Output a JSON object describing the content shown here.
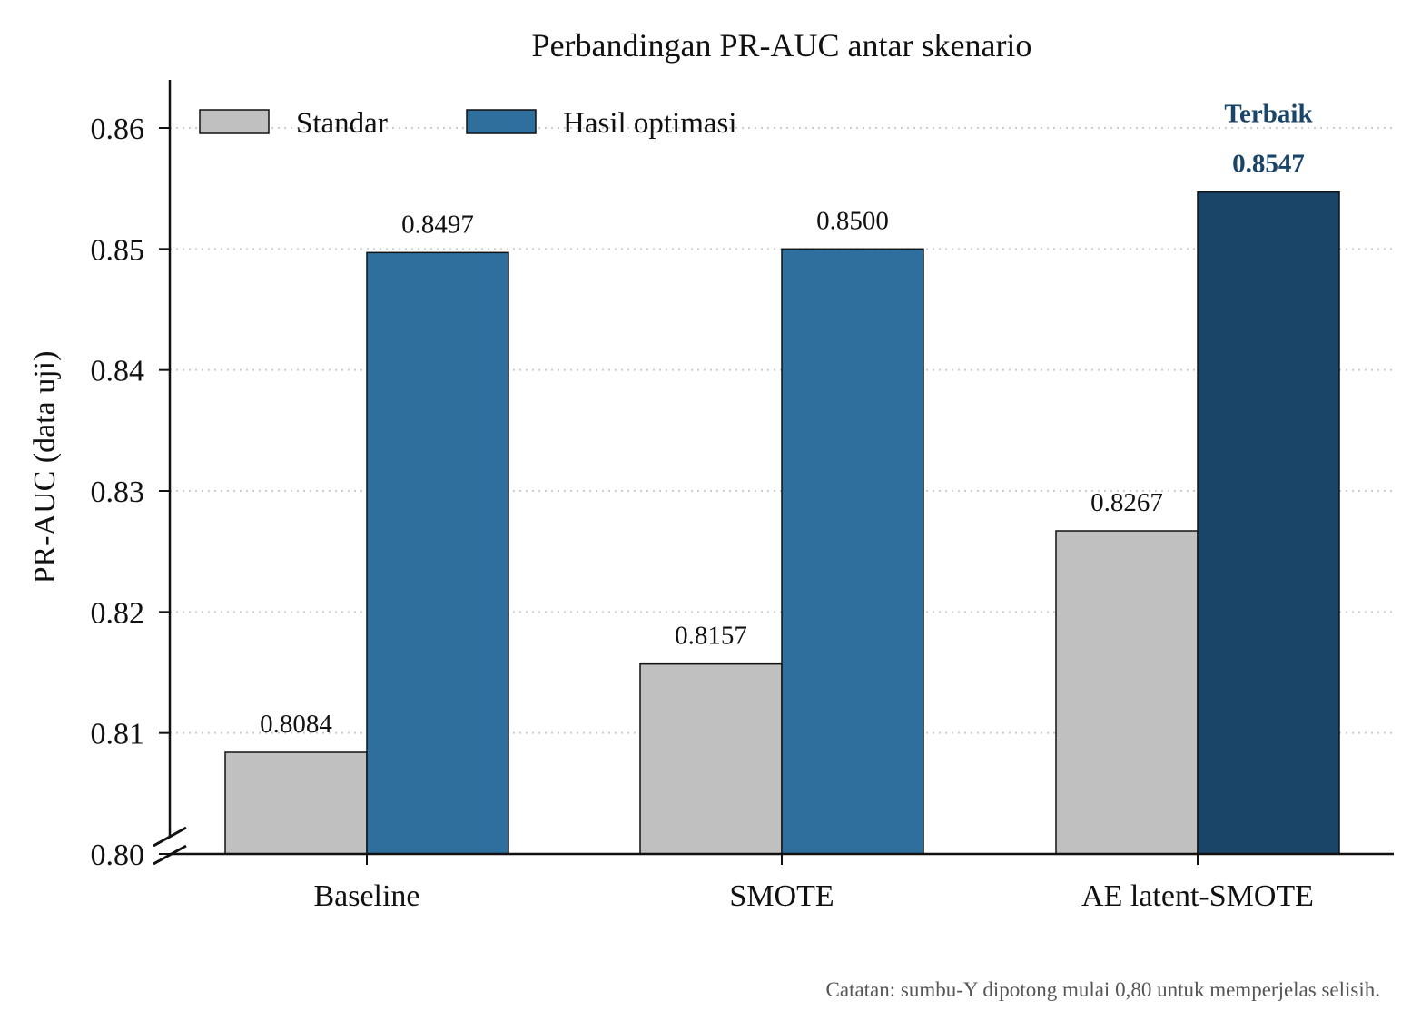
{
  "chart_data": {
    "type": "bar",
    "title": "Perbandingan PR-AUC antar skenario",
    "ylabel": "PR-AUC (data uji)",
    "xlabel": "",
    "categories": [
      "Baseline",
      "SMOTE",
      "AE latent-SMOTE"
    ],
    "series": [
      {
        "name": "Standar",
        "values": [
          0.8084,
          0.8157,
          0.8267
        ],
        "color": "#c0c0c0"
      },
      {
        "name": "Hasil optimasi",
        "values": [
          0.8497,
          0.85,
          0.8547
        ],
        "color": "#2e6f9e"
      }
    ],
    "value_labels": [
      [
        "0.8084",
        "0.8157",
        "0.8267"
      ],
      [
        "0.8497",
        "0.8500",
        "0.8547"
      ]
    ],
    "ylim": [
      0.8,
      0.864
    ],
    "yticks": [
      0.8,
      0.81,
      0.82,
      0.83,
      0.84,
      0.85,
      0.86
    ],
    "ytick_labels": [
      "0.80",
      "0.81",
      "0.82",
      "0.83",
      "0.84",
      "0.85",
      "0.86"
    ],
    "grid": "y-dotted",
    "legend_position": "top-left",
    "axis_break": true,
    "highlight": {
      "series_index": 1,
      "category_index": 2,
      "label": "Terbaik",
      "color": "#1a4569"
    },
    "note": "Catatan: sumbu-Y dipotong mulai 0,80 untuk memperjelas selisih."
  }
}
